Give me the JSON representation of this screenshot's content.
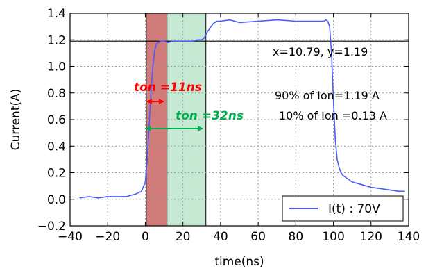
{
  "chart_data": {
    "type": "line",
    "xlabel": "time(ns)",
    "ylabel": "Current(A)",
    "xlim": [
      -40,
      140
    ],
    "ylim": [
      -0.2,
      1.4
    ],
    "xticks": [
      -40,
      -20,
      0,
      20,
      40,
      60,
      80,
      100,
      120,
      140
    ],
    "yticks": [
      -0.2,
      0.0,
      0.2,
      0.4,
      0.6,
      0.8,
      1.0,
      1.2,
      1.4
    ],
    "xtick_labels": [
      "−40",
      "−20",
      "0",
      "20",
      "40",
      "60",
      "80",
      "100",
      "120",
      "140"
    ],
    "ytick_labels": [
      "−0.2",
      "0.0",
      "0.2",
      "0.4",
      "0.6",
      "0.8",
      "1.0",
      "1.2",
      "1.4"
    ],
    "grid": true,
    "legend_position": "bottom-right",
    "series": [
      {
        "name": "I(t) : 70V",
        "color": "#4a5cff",
        "x": [
          -35,
          -30,
          -25,
          -20,
          -15,
          -10,
          -5,
          -2,
          0,
          1,
          2,
          3,
          4,
          5,
          6,
          7,
          8,
          9,
          10,
          12,
          15,
          20,
          25,
          28,
          30,
          31,
          32,
          33,
          34,
          35,
          36,
          38,
          40,
          45,
          50,
          60,
          70,
          80,
          90,
          95,
          96,
          97,
          98,
          99,
          100,
          101,
          102,
          103,
          104,
          105,
          107,
          110,
          115,
          120,
          125,
          130,
          135,
          138
        ],
        "y": [
          0.01,
          0.02,
          0.01,
          0.02,
          0.02,
          0.02,
          0.04,
          0.06,
          0.13,
          0.3,
          0.55,
          0.8,
          1.0,
          1.12,
          1.17,
          1.18,
          1.19,
          1.19,
          1.19,
          1.18,
          1.19,
          1.19,
          1.19,
          1.2,
          1.2,
          1.21,
          1.23,
          1.26,
          1.28,
          1.3,
          1.32,
          1.34,
          1.34,
          1.35,
          1.33,
          1.34,
          1.35,
          1.34,
          1.34,
          1.34,
          1.35,
          1.34,
          1.3,
          1.1,
          0.75,
          0.45,
          0.3,
          0.24,
          0.2,
          0.18,
          0.16,
          0.13,
          0.11,
          0.09,
          0.08,
          0.07,
          0.06,
          0.06
        ]
      }
    ],
    "hlines": [
      {
        "y": 1.19,
        "color": "#000000"
      }
    ],
    "shaded_regions": [
      {
        "x0": 0.5,
        "x1": 11.5,
        "color": "#c0504d",
        "opacity": 0.75,
        "label": "ton =11ns",
        "label_color": "#ff0000"
      },
      {
        "x0": 11.5,
        "x1": 32.2,
        "color": "#9fdbb6",
        "opacity": 0.6,
        "label": "ton =32ns",
        "label_color": "#00b050"
      }
    ],
    "annotations": [
      {
        "text": "x=10.79, y=1.19"
      },
      {
        "text": "90% of Ion=1.19 A"
      },
      {
        "text": "10% of Ion =0.13 A"
      }
    ]
  }
}
